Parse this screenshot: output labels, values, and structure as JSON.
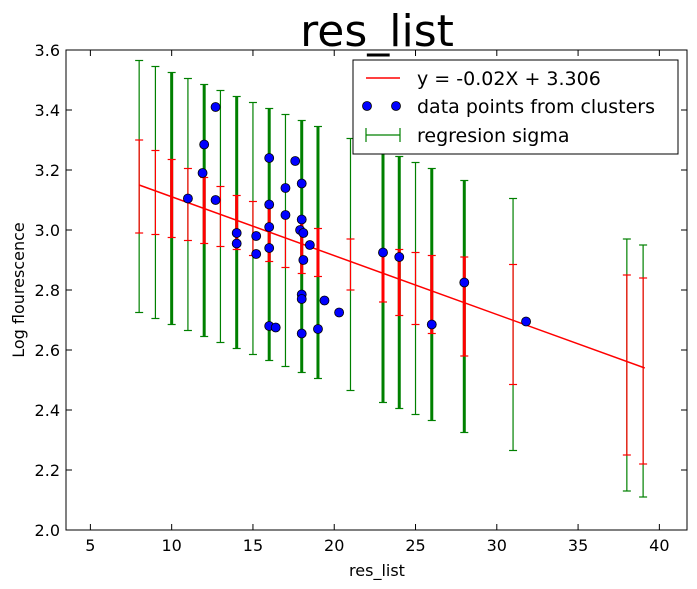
{
  "chart_data": {
    "type": "scatter",
    "title": "res_list",
    "xlabel": "res_list",
    "ylabel": "Log flourescence",
    "xlim": [
      3.5,
      41.7
    ],
    "ylim": [
      2.0,
      3.6
    ],
    "xticks": [
      5,
      10,
      15,
      20,
      25,
      30,
      35,
      40
    ],
    "yticks": [
      2.0,
      2.2,
      2.4,
      2.6,
      2.8,
      3.0,
      3.2,
      3.4,
      3.6
    ],
    "grid": false,
    "legend_position": "top-right",
    "series": [
      {
        "name": "y = -0.02X + 3.306",
        "kind": "line",
        "color": "#ff0000",
        "x": [
          8,
          39.1
        ],
        "y": [
          3.15,
          2.54
        ]
      },
      {
        "name": "data points from clusters",
        "kind": "points",
        "color": "#0000ff",
        "x": [
          11,
          11.9,
          12,
          12.7,
          12.7,
          14,
          14,
          15.2,
          15.2,
          16,
          16,
          16,
          16,
          16,
          16.4,
          17,
          17,
          17.6,
          17.9,
          18,
          18,
          18,
          18,
          18,
          18.1,
          18.1,
          18.5,
          19,
          19.4,
          20.3,
          23,
          24,
          26,
          28,
          31.8
        ],
        "y": [
          3.105,
          3.19,
          3.285,
          3.1,
          3.41,
          2.99,
          2.955,
          2.98,
          2.92,
          3.24,
          3.085,
          3.01,
          2.94,
          2.68,
          2.675,
          3.14,
          3.05,
          3.23,
          3.0,
          3.155,
          3.035,
          2.785,
          2.77,
          2.655,
          2.99,
          2.9,
          2.95,
          2.67,
          2.765,
          2.725,
          2.925,
          2.91,
          2.685,
          2.825,
          2.695
        ]
      },
      {
        "name": "regresion sigma",
        "kind": "errorbars",
        "color": "#008000",
        "x": [
          8,
          9,
          10,
          11,
          12,
          13,
          14,
          15,
          16,
          17,
          18,
          19,
          21,
          23,
          24,
          25,
          26,
          28,
          31,
          38,
          39
        ],
        "y": [
          3.145,
          3.125,
          3.105,
          3.085,
          3.065,
          3.045,
          3.025,
          3.005,
          2.985,
          2.965,
          2.945,
          2.925,
          2.885,
          2.845,
          2.825,
          2.805,
          2.785,
          2.745,
          2.685,
          2.55,
          2.53
        ],
        "sigma": [
          0.42,
          0.42,
          0.42,
          0.42,
          0.42,
          0.42,
          0.42,
          0.42,
          0.42,
          0.42,
          0.42,
          0.42,
          0.42,
          0.42,
          0.42,
          0.42,
          0.42,
          0.42,
          0.42,
          0.42,
          0.42
        ],
        "bold_x": [
          10,
          12,
          14,
          16,
          18,
          19,
          23,
          24,
          26,
          28
        ]
      }
    ],
    "residual_errorbars": {
      "color": "#ff0000",
      "x": [
        8,
        9,
        10,
        11,
        12,
        13,
        14,
        15,
        16,
        17,
        18,
        19,
        21,
        23,
        24,
        25,
        26,
        28,
        31,
        38,
        39
      ],
      "y": [
        3.145,
        3.125,
        3.105,
        3.085,
        3.065,
        3.045,
        3.025,
        3.005,
        2.985,
        2.965,
        2.945,
        2.925,
        2.885,
        2.845,
        2.825,
        2.805,
        2.785,
        2.745,
        2.685,
        2.55,
        2.53
      ],
      "sigma": [
        0.155,
        0.14,
        0.13,
        0.12,
        0.11,
        0.1,
        0.09,
        0.09,
        0.09,
        0.09,
        0.09,
        0.08,
        0.085,
        0.085,
        0.11,
        0.12,
        0.13,
        0.165,
        0.2,
        0.3,
        0.31
      ],
      "bold_x": [
        10,
        12,
        14,
        16,
        18,
        19,
        23,
        24,
        26,
        28
      ]
    }
  }
}
